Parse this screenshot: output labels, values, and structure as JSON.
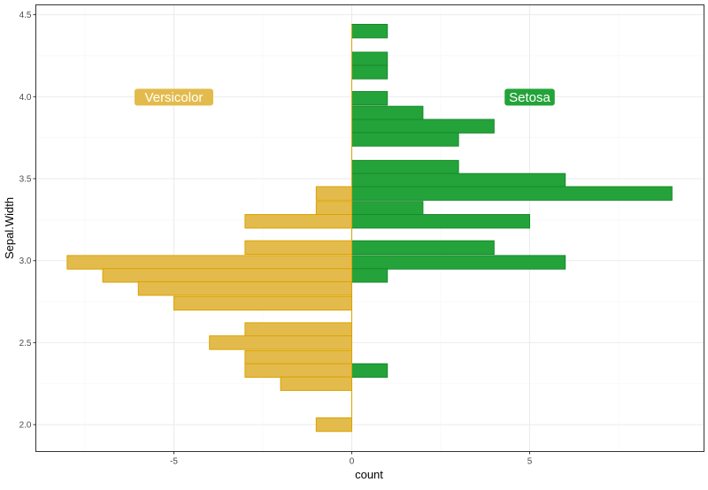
{
  "chart_data": {
    "type": "bar",
    "orientation": "horizontal",
    "xlabel": "count",
    "ylabel": "Sepal.Width",
    "xlim": [
      -8.88,
      9.9
    ],
    "ylim": [
      1.836,
      4.56
    ],
    "x_ticks": [
      -5,
      0,
      5
    ],
    "x_tick_labels": [
      "-5",
      "0",
      "5"
    ],
    "y_ticks": [
      2.0,
      2.5,
      3.0,
      3.5,
      4.0,
      4.5
    ],
    "y_tick_labels": [
      "2.0",
      "2.5",
      "3.0",
      "3.5",
      "4.0",
      "4.5"
    ],
    "grid": true,
    "binwidth": 0.0828,
    "series": [
      {
        "name": "Setosa",
        "direction": "right",
        "fill": "#24a33a",
        "stroke": "#178a2a",
        "y": [
          4.4,
          4.23,
          4.15,
          3.99,
          3.9,
          3.82,
          3.74,
          3.57,
          3.49,
          3.41,
          3.32,
          3.24,
          3.08,
          2.99,
          2.91,
          2.33
        ],
        "values": [
          1,
          1,
          1,
          1,
          2,
          4,
          3,
          3,
          6,
          9,
          2,
          5,
          4,
          6,
          1,
          1
        ]
      },
      {
        "name": "Versicolor",
        "direction": "left",
        "fill": "#e3bb4d",
        "stroke": "#dba200",
        "y": [
          3.41,
          3.32,
          3.24,
          3.08,
          2.99,
          2.91,
          2.83,
          2.74,
          2.58,
          2.5,
          2.41,
          2.33,
          2.25,
          2.0
        ],
        "values": [
          1,
          1,
          3,
          3,
          8,
          7,
          6,
          5,
          3,
          4,
          3,
          3,
          2,
          1
        ]
      }
    ],
    "annotations": [
      {
        "text": "Versicolor",
        "x": -5,
        "y": 4.0,
        "color": "#e3bb4d"
      },
      {
        "text": "Setosa",
        "x": 5,
        "y": 4.0,
        "color": "#24a33a"
      }
    ]
  }
}
